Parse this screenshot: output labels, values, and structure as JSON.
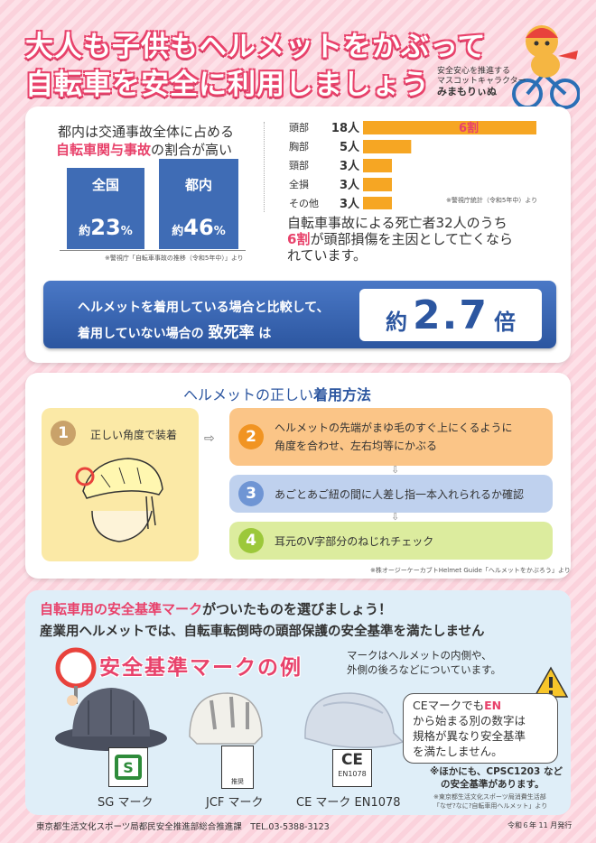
{
  "title": {
    "line1": "大人も子供もヘルメットをかぶって",
    "line2": "自転車を安全に利用しましょう"
  },
  "mascot": {
    "caption1": "安全安心を推進する",
    "caption2": "マスコットキャラクター",
    "name": "みまもりぃぬ"
  },
  "stats": {
    "heading_line1": "都内は交通事故全体に占める",
    "heading_highlight": "自転車関与事故",
    "heading_rest": "の割合が高い",
    "national_label": "全国",
    "national_prefix": "約",
    "national_value": "23",
    "national_unit": "%",
    "tokyo_label": "都内",
    "tokyo_prefix": "約",
    "tokyo_value": "46",
    "tokyo_unit": "%",
    "source": "※警視庁「自転車事故の推移（令和5年中）」より"
  },
  "chart_data": {
    "type": "bar",
    "categories": [
      "頭部",
      "胸部",
      "頸部",
      "全損",
      "その他"
    ],
    "values": [
      18,
      5,
      3,
      3,
      3
    ],
    "value_labels": [
      "18人",
      "5人",
      "3人",
      "3人",
      "3人"
    ],
    "annotation": "6割",
    "source": "※警視庁統計（令和5年中）より"
  },
  "death_text": {
    "line1": "自転車事故による死亡者32人のうち",
    "highlight": "6割",
    "line2": "が頭部損傷を主因として亡くなら",
    "line3": "れています。"
  },
  "fatality": {
    "line1": "ヘルメットを着用している場合と比較して、",
    "line2a": "着用していない場合の",
    "line2b": "致死率",
    "line2c": "は",
    "prefix": "約",
    "value": "2.7",
    "suffix": "倍"
  },
  "howto": {
    "heading_a": "ヘルメットの正しい",
    "heading_b": "着用方法",
    "step1": {
      "num": "1",
      "text": "正しい角度で装着"
    },
    "step2": {
      "num": "2",
      "text1": "ヘルメットの先端がまゆ毛のすぐ上にくるように",
      "text2": "角度を合わせ、左右均等にかぶる"
    },
    "step3": {
      "num": "3",
      "text": "あごとあご紐の間に人差し指一本入れられるか確認"
    },
    "step4": {
      "num": "4",
      "text": "耳元のV字部分のねじれチェック"
    },
    "source": "※株オージーケーカブトHelmet Guide「ヘルメットをかぶろう」より"
  },
  "standards": {
    "line1_highlight": "自転車用の安全基準マーク",
    "line1_rest": "がついたものを選びましょう！",
    "line2": "産業用ヘルメットでは、自転車転倒時の頭部保護の安全基準を満たしません",
    "example_title": "安全基準マークの例",
    "location_note1": "マークはヘルメットの内側や、",
    "location_note2": "外側の後ろなどについています。",
    "ce_note1a": "CEマークでも",
    "ce_note1b": "EN",
    "ce_note2": "から始まる別の数字は",
    "ce_note3": "規格が異なり安全基準",
    "ce_note4": "を満たしません。",
    "other_note1": "※ほかにも、CPSC1203 など",
    "other_note2": "の安全基準があります。",
    "source1": "※東京都生活文化スポーツ局消費生活部",
    "source2": "「なぜ?なに?自転車用ヘルメット」より",
    "sg_label": "SG マーク",
    "jcf_label": "JCF マーク",
    "ce_label": "CE マーク EN1078",
    "jcf_mark_text": "推奨",
    "ce_mark_text": "CE",
    "ce_code": "EN1078"
  },
  "footer": {
    "left": "東京都生活文化スポーツ局都民安全推進部総合推進課　TEL.03-5388-3123",
    "right": "令和６年 11 月発行"
  }
}
